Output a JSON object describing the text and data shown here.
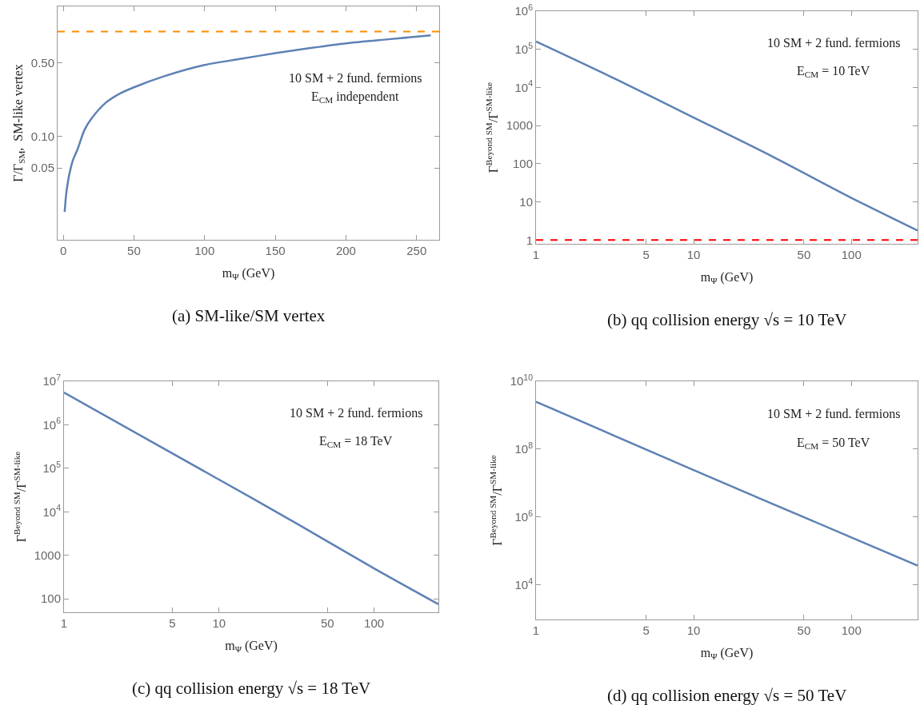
{
  "chart_data": [
    {
      "type": "line",
      "title": "(a) SM-like/SM vertex",
      "xlabel": "m$_{Ψ}$ (GeV)",
      "ylabel": "Γ/Γ$_{SM}$,  SM-like vertex",
      "annotations": [
        "10 SM + 2 fund. fermions",
        "E$_{CM}$ independent"
      ],
      "log": "y",
      "xlim": [
        -4,
        266
      ],
      "xticks": [
        0,
        50,
        100,
        150,
        200,
        250
      ],
      "ylim": [
        0.0103,
        1.74
      ],
      "yticks": [
        0.05,
        {
          "value": 0.1,
          "label": "0.10"
        },
        {
          "value": 0.5,
          "label": "0.50"
        }
      ],
      "line_style": "solid",
      "x": [
        1,
        2,
        3.4,
        5,
        7,
        10,
        15,
        20,
        30,
        40,
        50,
        71,
        100,
        125,
        150,
        175,
        200,
        230,
        260
      ],
      "series": [
        {
          "color": "#5e81b5",
          "values": [
            0.019,
            0.0275,
            0.0375,
            0.048,
            0.06,
            0.0746,
            0.115,
            0.148,
            0.209,
            0.256,
            0.294,
            0.373,
            0.48,
            0.548,
            0.622,
            0.697,
            0.773,
            0.845,
            0.92
          ]
        }
      ],
      "ref_lines": [
        {
          "axis": "y",
          "value": 1,
          "color": "#ff8c00",
          "line_style": "dashed"
        }
      ]
    },
    {
      "type": "line",
      "title": "(b) qq collision energy √s = 10 TeV",
      "xlabel": "m$_{Ψ}$ (GeV)",
      "ylabel": "Γ$^{Beyond SM}$/Γ$^{SM-like}$",
      "annotations": [
        "10 SM + 2 fund. fermions",
        "E$_{CM}$ = 10 TeV"
      ],
      "log": "xy",
      "xlim": [
        1,
        263
      ],
      "xticks": [
        1,
        5,
        10,
        50,
        100
      ],
      "ylim": [
        0.8,
        1000000
      ],
      "yticks": [
        1,
        10,
        100,
        1000,
        {
          "value": 10000,
          "label": "10$^{4}$"
        },
        {
          "value": 100000,
          "label": "10$^{5}$"
        },
        {
          "value": 1000000,
          "label": "10$^{6}$"
        }
      ],
      "line_style": "solid",
      "x": [
        1,
        3.16,
        10,
        31.6,
        100,
        263
      ],
      "series": [
        {
          "color": "#5e81b5",
          "values": [
            160000,
            17000,
            1630,
            155,
            12.8,
            1.78
          ]
        }
      ],
      "ref_lines": [
        {
          "axis": "y",
          "value": 1,
          "color": "#ff0000",
          "line_style": "dashed"
        }
      ]
    },
    {
      "type": "line",
      "title": "(c) qq collision energy √s = 18 TeV",
      "xlabel": "m$_{Ψ}$ (GeV)",
      "ylabel": "Γ$^{Beyond SM}$/Γ$^{SM-like}$",
      "annotations": [
        "10 SM + 2 fund. fermions",
        "E$_{CM}$ = 18 TeV"
      ],
      "log": "xy",
      "xlim": [
        1,
        260
      ],
      "xticks": [
        1,
        5,
        10,
        50,
        100
      ],
      "ylim": [
        49,
        10000000
      ],
      "yticks": [
        100,
        1000,
        {
          "value": 10000,
          "label": "10$^{4}$"
        },
        {
          "value": 100000,
          "label": "10$^{5}$"
        },
        {
          "value": 1000000,
          "label": "10$^{6}$"
        },
        {
          "value": 10000000,
          "label": "10$^{7}$"
        }
      ],
      "line_style": "solid",
      "x": [
        1,
        10,
        31.6,
        100,
        260
      ],
      "series": [
        {
          "color": "#5e81b5",
          "values": [
            5500000,
            55000,
            5400,
            500,
            75
          ]
        }
      ]
    },
    {
      "type": "line",
      "title": "(d) qq collision energy √s = 50 TeV",
      "xlabel": "m$_{Ψ}$ (GeV)",
      "ylabel": "Γ$^{Beyond SM}$/Γ$^{SM-like}$",
      "annotations": [
        "10 SM + 2 fund. fermions",
        "E$_{CM}$ = 50 TeV"
      ],
      "log": "xy",
      "xlim": [
        1,
        263
      ],
      "xticks": [
        1,
        5,
        10,
        50,
        100
      ],
      "ylim": [
        950,
        10000000000
      ],
      "yticks": [
        {
          "value": 10000,
          "label": "10$^{4}$"
        },
        {
          "value": 1000000,
          "label": "10$^{6}$"
        },
        {
          "value": 100000000,
          "label": "10$^{8}$"
        },
        {
          "value": 10000000000,
          "label": "10$^{10}$"
        }
      ],
      "line_style": "solid",
      "x": [
        1,
        10,
        100,
        263
      ],
      "series": [
        {
          "color": "#5e81b5",
          "values": [
            2500000000,
            24000000,
            250000,
            37000
          ]
        }
      ]
    }
  ]
}
